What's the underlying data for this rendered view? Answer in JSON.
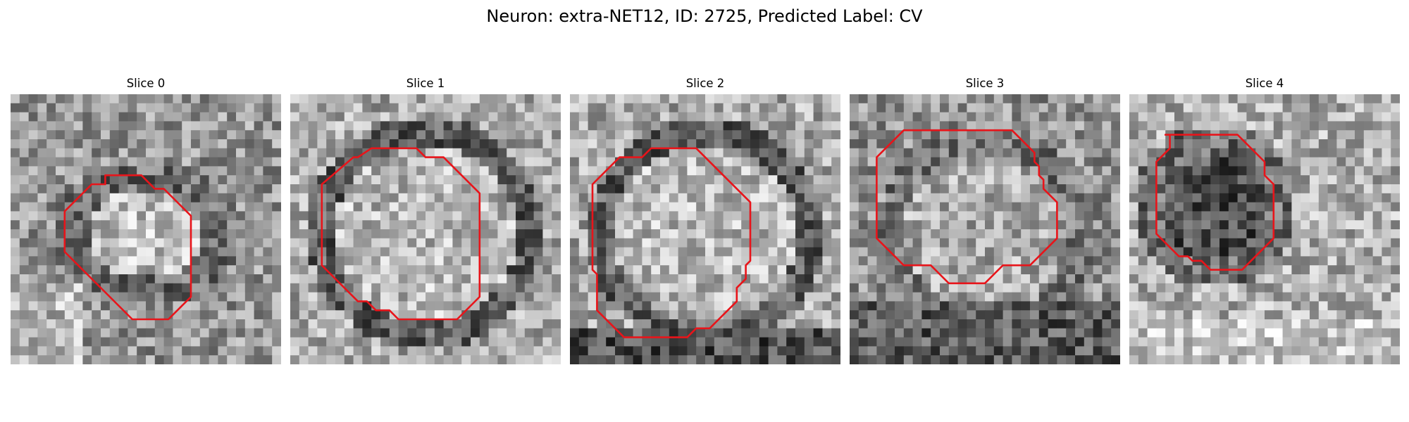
{
  "figure": {
    "title": "Neuron: extra-NET12, ID: 2725, Predicted Label: CV",
    "contour_color": "#e8141a",
    "colormap": "gray"
  },
  "panels": [
    {
      "title": "Slice 0",
      "seed": 11,
      "scene": "ellipse",
      "contour": [
        [
          10.5,
          9
        ],
        [
          14.5,
          9
        ],
        [
          16,
          10.5
        ],
        [
          17,
          10.5
        ],
        [
          20,
          13.5
        ],
        [
          20,
          22.5
        ],
        [
          17.5,
          25
        ],
        [
          13.5,
          25
        ],
        [
          6,
          17.5
        ],
        [
          6,
          13
        ],
        [
          9,
          10
        ],
        [
          10.5,
          10
        ]
      ]
    },
    {
      "title": "Slice 1",
      "seed": 23,
      "scene": "ring",
      "contour": [
        [
          9,
          6
        ],
        [
          14,
          6
        ],
        [
          15,
          7
        ],
        [
          17,
          7
        ],
        [
          21,
          11
        ],
        [
          21,
          22.5
        ],
        [
          18.5,
          25
        ],
        [
          12,
          25
        ],
        [
          11,
          24
        ],
        [
          9.5,
          24
        ],
        [
          8.5,
          23
        ],
        [
          7.5,
          23
        ],
        [
          3.5,
          19
        ],
        [
          3.5,
          10
        ],
        [
          7,
          7
        ],
        [
          7.5,
          7
        ]
      ]
    },
    {
      "title": "Slice 2",
      "seed": 37,
      "scene": "ring-dark",
      "contour": [
        [
          9,
          6
        ],
        [
          14,
          6
        ],
        [
          20,
          12
        ],
        [
          20,
          18.5
        ],
        [
          19.5,
          19
        ],
        [
          19.5,
          20.5
        ],
        [
          18.5,
          21.5
        ],
        [
          18.5,
          23
        ],
        [
          15.5,
          26
        ],
        [
          14,
          26
        ],
        [
          13,
          27
        ],
        [
          6,
          27
        ],
        [
          3,
          24
        ],
        [
          3,
          20
        ],
        [
          2.5,
          19.5
        ],
        [
          2.5,
          10
        ],
        [
          5.5,
          7
        ],
        [
          8,
          7
        ]
      ]
    },
    {
      "title": "Slice 3",
      "seed": 51,
      "scene": "blob",
      "contour": [
        [
          8.5,
          4
        ],
        [
          18,
          4
        ],
        [
          20.5,
          6.5
        ],
        [
          20.5,
          7.5
        ],
        [
          21,
          8
        ],
        [
          21,
          9
        ],
        [
          21.5,
          9.5
        ],
        [
          21.5,
          10.5
        ],
        [
          22,
          11
        ],
        [
          23,
          12
        ],
        [
          23,
          16
        ],
        [
          20,
          19
        ],
        [
          17,
          19
        ],
        [
          16.5,
          19.5
        ],
        [
          16,
          20
        ],
        [
          15,
          21
        ],
        [
          11,
          21
        ],
        [
          10,
          20
        ],
        [
          9.5,
          19.5
        ],
        [
          9,
          19
        ],
        [
          6,
          19
        ],
        [
          3,
          16
        ],
        [
          3,
          7
        ],
        [
          6,
          4
        ],
        [
          8,
          4
        ]
      ]
    },
    {
      "title": "Slice 4",
      "seed": 67,
      "scene": "dark-blob",
      "contour": [
        [
          4,
          4.5
        ],
        [
          12,
          4.5
        ],
        [
          15,
          7.5
        ],
        [
          15,
          9
        ],
        [
          16,
          10
        ],
        [
          16,
          16
        ],
        [
          12.5,
          19.5
        ],
        [
          9,
          19.5
        ],
        [
          8,
          18.5
        ],
        [
          7,
          18.5
        ],
        [
          6.5,
          18
        ],
        [
          5.5,
          18
        ],
        [
          3,
          15.5
        ],
        [
          3,
          7.5
        ],
        [
          4.5,
          6
        ],
        [
          4.5,
          4.5
        ]
      ]
    }
  ]
}
